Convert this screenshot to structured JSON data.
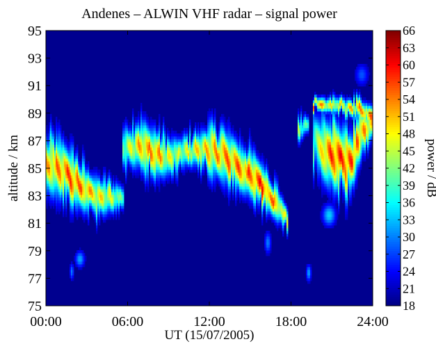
{
  "chart_data": {
    "type": "heatmap",
    "title": "Andenes – ALWIN VHF radar – signal power",
    "xlabel": "UT (15/07/2005)",
    "ylabel": "altitude / km",
    "colorbar_label": "power / dB",
    "xlim": [
      0,
      24
    ],
    "ylim": [
      75,
      95
    ],
    "clim": [
      18,
      66
    ],
    "x_ticks": [
      0,
      6,
      12,
      18,
      24
    ],
    "x_tick_labels": [
      "00:00",
      "06:00",
      "12:00",
      "18:00",
      "24:00"
    ],
    "y_ticks": [
      75,
      77,
      79,
      81,
      83,
      85,
      87,
      89,
      91,
      93,
      95
    ],
    "y_tick_labels": [
      "75",
      "77",
      "79",
      "81",
      "83",
      "85",
      "87",
      "89",
      "91",
      "93",
      "95"
    ],
    "colorbar_ticks": [
      18,
      21,
      24,
      27,
      30,
      33,
      36,
      39,
      42,
      45,
      48,
      51,
      54,
      57,
      60,
      63,
      66
    ],
    "colorbar_tick_labels": [
      "18",
      "21",
      "24",
      "27",
      "30",
      "33",
      "36",
      "39",
      "42",
      "45",
      "48",
      "51",
      "54",
      "57",
      "60",
      "63",
      "66"
    ],
    "colormap": "jet",
    "background_color": "#00008f",
    "layers": [
      {
        "id": "echo-layer-night",
        "t": [
          0.0,
          1.0,
          2.0,
          3.0,
          4.0,
          5.0,
          5.6
        ],
        "h_center": [
          85.2,
          85.0,
          84.2,
          83.3,
          82.9,
          82.9,
          82.8
        ],
        "thickness": [
          5.0,
          5.0,
          4.6,
          3.6,
          3.2,
          2.8,
          2.2
        ],
        "peak_db": [
          54,
          57,
          60,
          56,
          52,
          48,
          42
        ]
      },
      {
        "id": "echo-layer-morning",
        "t": [
          5.8,
          6.8,
          8.0,
          9.0,
          10.0,
          11.0,
          12.0
        ],
        "h_center": [
          86.5,
          86.8,
          86.0,
          85.8,
          86.2,
          86.4,
          86.2
        ],
        "thickness": [
          3.6,
          4.4,
          4.2,
          3.4,
          2.6,
          3.0,
          3.8
        ],
        "peak_db": [
          46,
          54,
          58,
          50,
          48,
          52,
          54
        ]
      },
      {
        "id": "echo-layer-noon",
        "t": [
          12.0,
          13.0,
          14.0,
          15.0,
          16.0,
          17.0,
          17.6
        ],
        "h_center": [
          86.4,
          86.0,
          85.2,
          84.6,
          83.6,
          82.4,
          81.4
        ],
        "thickness": [
          4.4,
          4.6,
          4.4,
          4.0,
          3.8,
          3.0,
          2.0
        ],
        "peak_db": [
          54,
          57,
          58,
          59,
          62,
          56,
          48
        ]
      },
      {
        "id": "echo-layer-evening",
        "t": [
          18.6,
          19.2
        ],
        "h_center": [
          87.8,
          88.2
        ],
        "thickness": [
          2.4,
          1.4
        ],
        "peak_db": [
          46,
          40
        ]
      },
      {
        "id": "echo-layer-late",
        "t": [
          19.8,
          20.6,
          21.4,
          22.4,
          23.2,
          24.0
        ],
        "h_center": [
          86.8,
          86.2,
          85.8,
          85.4,
          87.6,
          88.4
        ],
        "thickness": [
          5.4,
          5.8,
          5.8,
          5.6,
          3.8,
          2.6
        ],
        "peak_db": [
          44,
          58,
          62,
          60,
          56,
          54
        ]
      },
      {
        "id": "echo-upper-late",
        "t": [
          19.8,
          21.0,
          22.5,
          24.0
        ],
        "h_center": [
          89.6,
          89.6,
          89.4,
          88.8
        ],
        "thickness": [
          1.2,
          1.4,
          1.6,
          1.8
        ],
        "peak_db": [
          58,
          50,
          54,
          58
        ]
      }
    ],
    "patches": [
      {
        "id": "echo-patch-low-1",
        "t": 2.5,
        "h": 78.4,
        "dt": 0.35,
        "dh": 0.6,
        "peak_db": 32
      },
      {
        "id": "echo-patch-low-2",
        "t": 1.9,
        "h": 77.5,
        "dt": 0.15,
        "dh": 0.6,
        "peak_db": 30
      },
      {
        "id": "echo-patch-low-3",
        "t": 19.3,
        "h": 77.4,
        "dt": 0.18,
        "dh": 0.6,
        "peak_db": 32
      },
      {
        "id": "echo-patch-low-4",
        "t": 20.8,
        "h": 81.6,
        "dt": 0.5,
        "dh": 0.8,
        "peak_db": 34
      },
      {
        "id": "echo-patch-high-1",
        "t": 23.2,
        "h": 91.8,
        "dt": 0.5,
        "dh": 0.8,
        "peak_db": 28
      },
      {
        "id": "echo-patch-mid-1",
        "t": 16.3,
        "h": 79.6,
        "dt": 0.25,
        "dh": 0.8,
        "peak_db": 30
      }
    ]
  }
}
